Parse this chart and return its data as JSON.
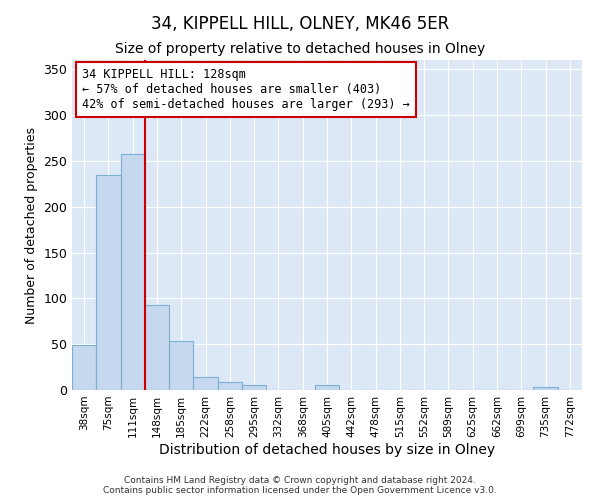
{
  "title1": "34, KIPPELL HILL, OLNEY, MK46 5ER",
  "title2": "Size of property relative to detached houses in Olney",
  "xlabel": "Distribution of detached houses by size in Olney",
  "ylabel": "Number of detached properties",
  "bin_labels": [
    "38sqm",
    "75sqm",
    "111sqm",
    "148sqm",
    "185sqm",
    "222sqm",
    "258sqm",
    "295sqm",
    "332sqm",
    "368sqm",
    "405sqm",
    "442sqm",
    "478sqm",
    "515sqm",
    "552sqm",
    "589sqm",
    "625sqm",
    "662sqm",
    "699sqm",
    "735sqm",
    "772sqm"
  ],
  "bar_values": [
    49,
    235,
    257,
    93,
    54,
    14,
    9,
    5,
    0,
    0,
    5,
    0,
    0,
    0,
    0,
    0,
    0,
    0,
    0,
    3,
    0
  ],
  "bar_color": "#c5d8ee",
  "bar_edge_color": "#7bafd4",
  "vline_color": "#cc0000",
  "annotation_text": "34 KIPPELL HILL: 128sqm\n← 57% of detached houses are smaller (403)\n42% of semi-detached houses are larger (293) →",
  "annotation_box_color": "#ffffff",
  "annotation_box_edge": "#cc0000",
  "ylim": [
    0,
    360
  ],
  "yticks": [
    0,
    50,
    100,
    150,
    200,
    250,
    300,
    350
  ],
  "bg_color": "#dce8f5",
  "footnote": "Contains HM Land Registry data © Crown copyright and database right 2024.\nContains public sector information licensed under the Open Government Licence v3.0.",
  "title1_fontsize": 12,
  "title2_fontsize": 10,
  "xlabel_fontsize": 10,
  "ylabel_fontsize": 9,
  "grid_color": "#ffffff"
}
